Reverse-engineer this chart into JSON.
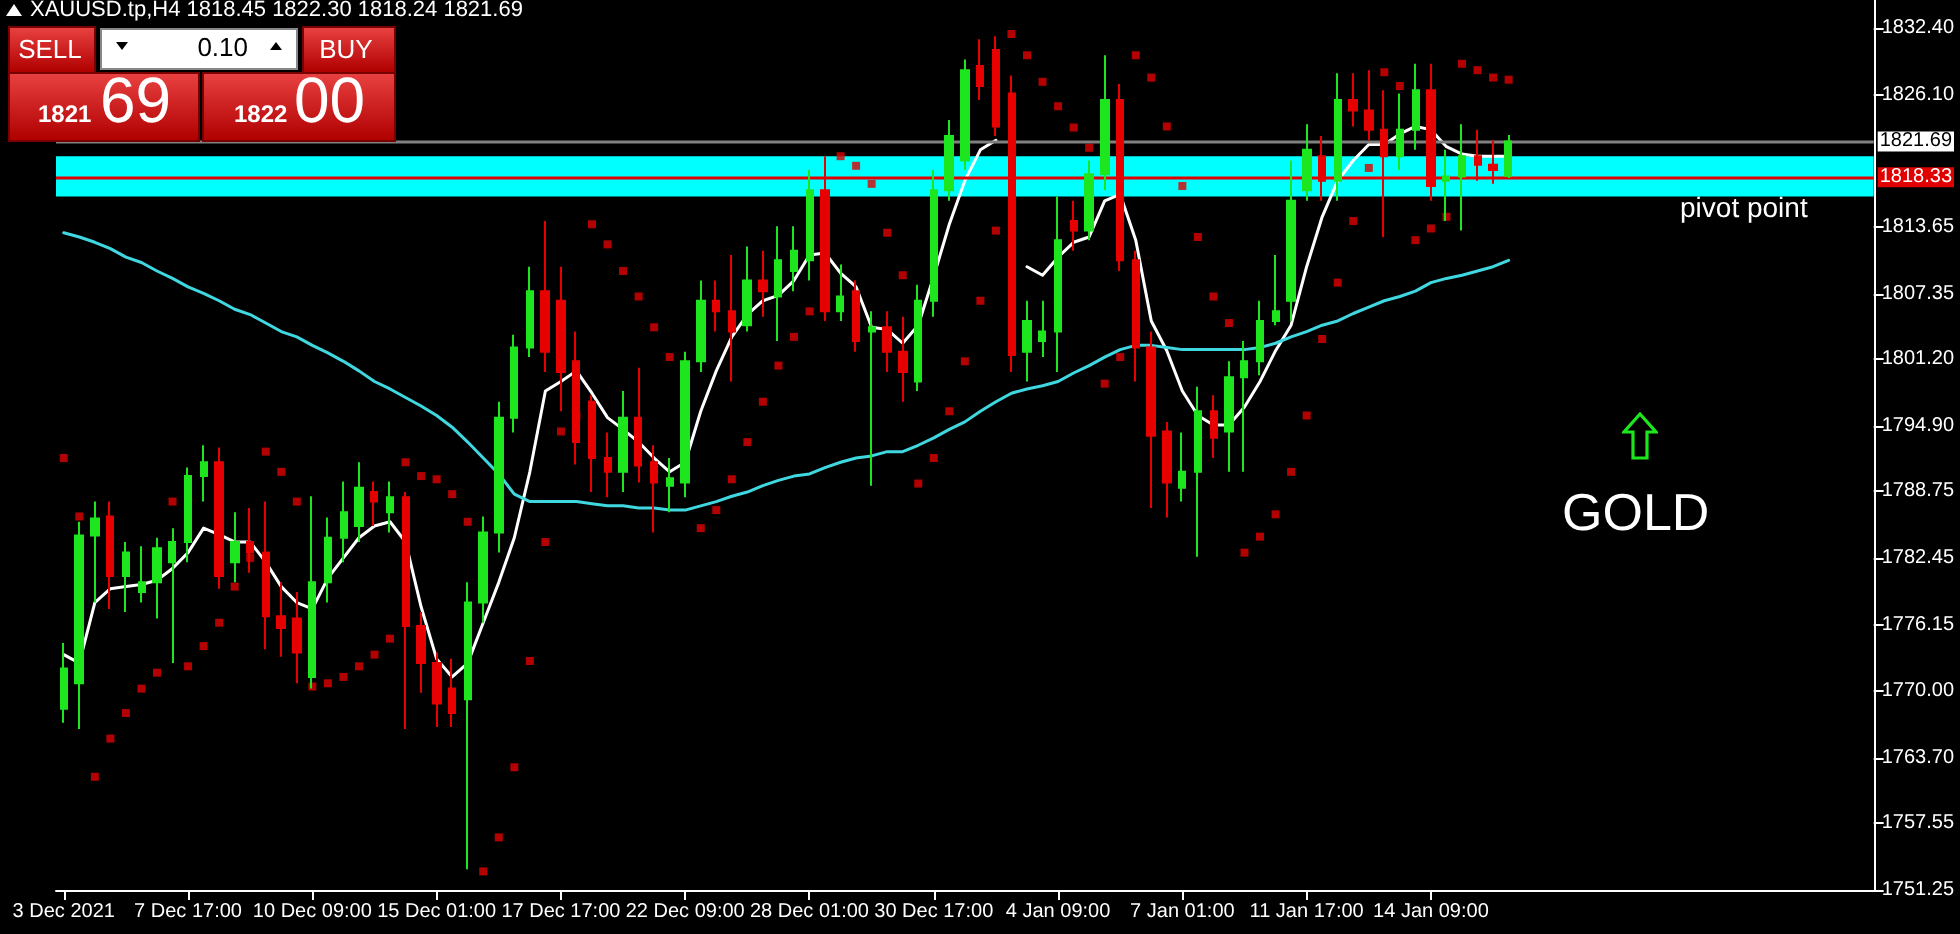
{
  "chart_data": {
    "type": "candlestick",
    "title": "XAUUSD.tp,H4  1818.45 1822.30 1818.24 1821.69",
    "categories": [
      "3 Dec 2021",
      null,
      null,
      null,
      null,
      null,
      null,
      null,
      "7 Dec 17:00",
      null,
      null,
      null,
      null,
      null,
      null,
      null,
      "10 Dec 09:00",
      null,
      null,
      null,
      null,
      null,
      null,
      null,
      "15 Dec 01:00",
      null,
      null,
      null,
      null,
      null,
      null,
      null,
      "17 Dec 17:00",
      null,
      null,
      null,
      null,
      null,
      null,
      null,
      "22 Dec 09:00",
      null,
      null,
      null,
      null,
      null,
      null,
      null,
      "28 Dec 01:00",
      null,
      null,
      null,
      null,
      null,
      null,
      null,
      "30 Dec 17:00",
      null,
      null,
      null,
      null,
      null,
      null,
      null,
      "4 Jan 09:00",
      null,
      null,
      null,
      null,
      null,
      null,
      null,
      "7 Jan 01:00",
      null,
      null,
      null,
      null,
      null,
      null,
      null,
      "11 Jan 17:00",
      null,
      null,
      null,
      null,
      null,
      null,
      null,
      "14 Jan 09:00",
      null,
      null,
      null,
      null,
      null,
      null,
      null,
      null,
      null,
      null,
      null,
      null,
      null,
      null,
      null,
      null,
      null,
      null,
      null,
      null,
      null,
      null,
      null,
      null,
      null,
      null,
      null,
      null
    ],
    "ylim": [
      1751.25,
      1835
    ],
    "yticks": [
      1751.25,
      1757.55,
      {
        "value": 1763.7,
        "label": "1763.70"
      },
      {
        "value": 1770,
        "label": "1770.00"
      },
      1776.15,
      1782.45,
      1788.75,
      {
        "value": 1794.9,
        "label": "1794.90"
      },
      {
        "value": 1801.2,
        "label": "1801.20"
      },
      1807.35,
      1813.65,
      {
        "value": 1826.1,
        "label": "1826.10"
      },
      {
        "value": 1832.4,
        "label": "1832.40"
      }
    ],
    "ref_lines": [
      {
        "axis": "y",
        "value": 1821.69,
        "label": "1821.69",
        "color": "#808080"
      },
      {
        "axis": "y",
        "value": 1818.33,
        "label": "1818.33",
        "color": "#e00000"
      }
    ],
    "bands": [
      {
        "axis": "y",
        "from": 1816.5,
        "to": 1820.3,
        "label": "pivot point",
        "color": "#00ffff"
      }
    ],
    "annotations": [
      "SELL",
      "0.10",
      "BUY",
      "1821",
      "69",
      "1822",
      "00",
      "GOLD"
    ],
    "series": [
      {
        "ohlc": [
          [
            1768.3,
            1774.5,
            1767.0,
            1772.1
          ],
          [
            1770.7,
            1785.9,
            1766.4,
            1784.6
          ],
          [
            1784.6,
            1787.8,
            1778.3,
            1786.2
          ],
          [
            1786.4,
            1787.8,
            1777.7,
            1780.8
          ],
          [
            1780.8,
            1784.0,
            1777.4,
            1783.0
          ],
          [
            1779.3,
            1783.6,
            1778.3,
            1780.2
          ],
          [
            1780.2,
            1784.4,
            1776.8,
            1783.4
          ],
          [
            1782.1,
            1785.3,
            1772.6,
            1784.0
          ],
          [
            1784.0,
            1791.0,
            1782.1,
            1790.2
          ],
          [
            1790.2,
            1793.1,
            1787.8,
            1791.5
          ],
          [
            1791.5,
            1792.9,
            1779.6,
            1780.8
          ],
          [
            1782.1,
            1786.8,
            1780.2,
            1784.0
          ],
          [
            1784.0,
            1787.2,
            1781.1,
            1783.0
          ],
          [
            1783.0,
            1787.8,
            1773.9,
            1777.0
          ],
          [
            1777.0,
            1780.2,
            1773.2,
            1775.9
          ],
          [
            1776.8,
            1779.3,
            1770.7,
            1773.6
          ],
          [
            1771.3,
            1788.3,
            1770.2,
            1780.2
          ],
          [
            1780.2,
            1786.3,
            1778.3,
            1784.4
          ],
          [
            1784.4,
            1789.7,
            1782.1,
            1786.8
          ],
          [
            1785.5,
            1791.5,
            1784.0,
            1789.1
          ],
          [
            1788.7,
            1789.7,
            1785.5,
            1787.8
          ],
          [
            1786.8,
            1789.7,
            1784.9,
            1788.2
          ],
          [
            1788.2,
            1788.7,
            1766.4,
            1776.1
          ],
          [
            1776.1,
            1777.4,
            1769.8,
            1772.6
          ],
          [
            1772.6,
            1773.6,
            1766.6,
            1768.8
          ],
          [
            1770.2,
            1773.0,
            1766.6,
            1767.9
          ],
          [
            1769.2,
            1780.2,
            1753.2,
            1778.3
          ],
          [
            1778.3,
            1786.4,
            1776.4,
            1784.9
          ],
          [
            1784.9,
            1797.2,
            1783.0,
            1795.7
          ],
          [
            1795.7,
            1803.5,
            1794.3,
            1802.3
          ],
          [
            1802.3,
            1809.9,
            1801.4,
            1807.6
          ],
          [
            1807.6,
            1814.2,
            1800.0,
            1801.9
          ],
          [
            1806.7,
            1809.9,
            1796.3,
            1800.0
          ],
          [
            1801.0,
            1803.8,
            1791.3,
            1793.4
          ],
          [
            1797.2,
            1797.8,
            1788.7,
            1791.9
          ],
          [
            1791.9,
            1794.3,
            1788.2,
            1790.6
          ],
          [
            1790.6,
            1798.2,
            1788.7,
            1795.7
          ],
          [
            1795.7,
            1800.4,
            1789.6,
            1791.2
          ],
          [
            1791.5,
            1793.1,
            1784.9,
            1789.6
          ],
          [
            1789.3,
            1791.9,
            1786.8,
            1790.0
          ],
          [
            1789.6,
            1801.9,
            1788.2,
            1801.0
          ],
          [
            1801.0,
            1808.6,
            1800.0,
            1806.7
          ],
          [
            1806.7,
            1808.6,
            1803.8,
            1805.7
          ],
          [
            1805.7,
            1811.0,
            1799.1,
            1803.8
          ],
          [
            1804.4,
            1811.8,
            1803.8,
            1808.6
          ],
          [
            1808.6,
            1811.4,
            1805.2,
            1807.6
          ],
          [
            1807.1,
            1813.7,
            1802.9,
            1810.5
          ],
          [
            1809.5,
            1813.7,
            1807.6,
            1811.4
          ],
          [
            1810.5,
            1819.0,
            1808.6,
            1817.1
          ],
          [
            1817.1,
            1820.3,
            1804.8,
            1805.7
          ],
          [
            1805.7,
            1810.1,
            1804.8,
            1807.1
          ],
          [
            1807.6,
            1808.6,
            1801.9,
            1802.9
          ],
          [
            1803.8,
            1805.7,
            1789.3,
            1804.2
          ],
          [
            1804.2,
            1805.7,
            1800.0,
            1801.9
          ],
          [
            1801.9,
            1805.2,
            1797.2,
            1800.0
          ],
          [
            1799.1,
            1808.2,
            1798.2,
            1806.7
          ],
          [
            1806.7,
            1819.0,
            1805.2,
            1817.1
          ],
          [
            1817.1,
            1823.7,
            1816.1,
            1822.2
          ],
          [
            1819.9,
            1829.4,
            1819.0,
            1828.4
          ],
          [
            1828.8,
            1831.3,
            1825.6,
            1826.9
          ],
          [
            1830.3,
            1831.6,
            1822.2,
            1823.1
          ],
          [
            1826.2,
            1827.9,
            1800.0,
            1801.6
          ],
          [
            1801.9,
            1806.7,
            1799.1,
            1804.8
          ],
          [
            1802.9,
            1806.7,
            1801.4,
            1803.8
          ],
          [
            1803.8,
            1816.5,
            1800.0,
            1812.4
          ],
          [
            1814.2,
            1816.1,
            1811.4,
            1813.3
          ],
          [
            1813.3,
            1819.9,
            1812.4,
            1818.6
          ],
          [
            1818.6,
            1829.8,
            1817.1,
            1825.6
          ],
          [
            1825.6,
            1827.1,
            1809.5,
            1810.5
          ],
          [
            1810.5,
            1811.4,
            1799.1,
            1802.3
          ],
          [
            1802.3,
            1803.8,
            1787.2,
            1794.0
          ],
          [
            1794.4,
            1795.3,
            1786.3,
            1789.6
          ],
          [
            1789.1,
            1794.3,
            1787.8,
            1790.6
          ],
          [
            1790.6,
            1798.6,
            1782.6,
            1796.3
          ],
          [
            1796.3,
            1797.8,
            1791.9,
            1793.8
          ],
          [
            1794.4,
            1801.0,
            1790.6,
            1799.5
          ],
          [
            1799.5,
            1802.9,
            1790.6,
            1801.0
          ],
          [
            1801.0,
            1806.7,
            1799.7,
            1804.8
          ],
          [
            1804.8,
            1811.0,
            1804.4,
            1805.7
          ],
          [
            1806.7,
            1819.9,
            1804.8,
            1816.1
          ],
          [
            1817.1,
            1823.3,
            1816.1,
            1820.9
          ],
          [
            1820.3,
            1822.2,
            1816.1,
            1818.0
          ],
          [
            1818.0,
            1828.1,
            1816.1,
            1825.6
          ],
          [
            1825.6,
            1828.1,
            1823.1,
            1824.6
          ],
          [
            1824.6,
            1828.4,
            1821.8,
            1822.8
          ],
          [
            1822.8,
            1826.5,
            1812.7,
            1820.3
          ],
          [
            1820.3,
            1826.2,
            1819.0,
            1822.8
          ],
          [
            1822.8,
            1829.0,
            1820.9,
            1826.5
          ],
          [
            1826.5,
            1829.0,
            1816.1,
            1817.5
          ],
          [
            1818.0,
            1820.9,
            1814.2,
            1818.4
          ],
          [
            1818.4,
            1823.3,
            1813.3,
            1820.3
          ],
          [
            1820.3,
            1822.8,
            1818.0,
            1819.5
          ],
          [
            1819.5,
            1821.8,
            1817.7,
            1819.0
          ],
          [
            1818.45,
            1822.3,
            1818.24,
            1821.69
          ],
          null,
          null,
          null,
          null,
          null,
          null,
          null,
          null,
          null,
          null,
          null,
          null,
          null,
          null,
          null,
          null,
          null,
          null,
          null,
          null,
          null,
          null,
          null
        ],
        "colors": [
          "#1ee61e",
          "#1ee61e",
          "#1ee61e",
          "#e60000",
          "#1ee61e",
          "#1ee61e",
          "#1ee61e",
          "#1ee61e",
          "#1ee61e",
          "#1ee61e",
          "#e60000",
          "#1ee61e",
          "#e60000",
          "#e60000",
          "#e60000",
          "#e60000",
          "#1ee61e",
          "#1ee61e",
          "#1ee61e",
          "#1ee61e",
          "#e60000",
          "#1ee61e",
          "#e60000",
          "#e60000",
          "#e60000",
          "#e60000",
          "#1ee61e",
          "#1ee61e",
          "#1ee61e",
          "#1ee61e",
          "#1ee61e",
          "#e60000",
          "#e60000",
          "#e60000",
          "#e60000",
          "#e60000",
          "#1ee61e",
          "#e60000",
          "#e60000",
          "#1ee61e",
          "#1ee61e",
          "#1ee61e",
          "#e60000",
          "#e60000",
          "#1ee61e",
          "#e60000",
          "#1ee61e",
          "#1ee61e",
          "#1ee61e",
          "#e60000",
          "#1ee61e",
          "#e60000",
          "#1ee61e",
          "#e60000",
          "#e60000",
          "#1ee61e",
          "#1ee61e",
          "#1ee61e",
          "#1ee61e",
          "#e60000",
          "#e60000",
          "#e60000",
          "#1ee61e",
          "#1ee61e",
          "#1ee61e",
          "#e60000",
          "#1ee61e",
          "#1ee61e",
          "#e60000",
          "#e60000",
          "#e60000",
          "#e60000",
          "#1ee61e",
          "#1ee61e",
          "#e60000",
          "#1ee61e",
          "#1ee61e",
          "#1ee61e",
          "#1ee61e",
          "#1ee61e",
          "#1ee61e",
          "#e60000",
          "#1ee61e",
          "#e60000",
          "#e60000",
          "#e60000",
          "#1ee61e",
          "#1ee61e",
          "#e60000",
          "#1ee61e",
          "#1ee61e",
          "#e60000",
          "#e60000",
          "#1ee61e",
          null,
          null,
          null,
          null,
          null,
          null,
          null,
          null,
          null,
          null,
          null,
          null,
          null,
          null,
          null,
          null,
          null,
          null,
          null,
          null,
          null,
          null,
          null
        ]
      },
      {
        "type": "line",
        "color": "#ffffff",
        "values": [
          1773.4,
          1772.6,
          1778.3,
          1779.6,
          1779.8,
          1780.0,
          1780.4,
          1781.5,
          1783.0,
          1785.3,
          1784.7,
          1784.0,
          1784.0,
          1782.1,
          1779.8,
          1778.3,
          1777.7,
          1780.6,
          1782.5,
          1784.4,
          1785.5,
          1785.9,
          1784.0,
          1777.9,
          1773.0,
          1771.3,
          1772.6,
          1776.4,
          1780.2,
          1784.4,
          1790.6,
          1798.2,
          1799.1,
          1800.1,
          1798.0,
          1795.7,
          1794.6,
          1793.4,
          1791.9,
          1790.6,
          1791.5,
          1796.3,
          1800.1,
          1803.3,
          1805.4,
          1806.7,
          1807.2,
          1808.6,
          1811.0,
          1811.2,
          1809.3,
          1808.0,
          1804.2,
          1804.0,
          1802.7,
          1804.4,
          1809.0,
          1813.9,
          1818.0,
          1820.9,
          1821.8,
          null,
          1809.9,
          1809.1,
          1810.8,
          1812.2,
          1812.7,
          1816.1,
          1816.7,
          1812.4,
          1804.8,
          1802.0,
          1798.2,
          1795.9,
          1795.0,
          1795.0,
          1796.7,
          1799.1,
          1802.0,
          1804.4,
          1809.9,
          1814.6,
          1818.0,
          1819.9,
          1821.4,
          1821.4,
          1822.4,
          1823.1,
          1822.8,
          1821.2,
          1820.5,
          1820.3,
          1820.3,
          1820.3,
          null,
          null,
          null,
          null,
          null,
          null,
          null,
          null,
          null,
          null,
          null,
          null,
          null,
          null,
          null,
          null,
          null,
          null,
          null,
          null,
          null,
          null,
          null
        ]
      },
      {
        "type": "line",
        "color": "#40d8e0",
        "values": [
          1813.1,
          1812.7,
          1812.2,
          1811.6,
          1810.8,
          1810.3,
          1809.5,
          1808.8,
          1808.0,
          1807.4,
          1806.7,
          1805.9,
          1805.4,
          1804.6,
          1803.8,
          1803.3,
          1802.5,
          1801.8,
          1801.0,
          1800.1,
          1799.1,
          1798.4,
          1797.6,
          1796.8,
          1795.9,
          1794.8,
          1793.4,
          1791.9,
          1790.4,
          1788.5,
          1787.8,
          1787.8,
          1787.8,
          1787.8,
          1787.6,
          1787.4,
          1787.4,
          1787.2,
          1787.2,
          1787.0,
          1787.0,
          1787.4,
          1787.8,
          1788.3,
          1788.7,
          1789.3,
          1789.8,
          1790.2,
          1790.4,
          1791.0,
          1791.5,
          1791.9,
          1792.1,
          1792.5,
          1792.5,
          1793.1,
          1793.8,
          1794.6,
          1795.3,
          1796.3,
          1797.2,
          1798.0,
          1798.4,
          1798.7,
          1799.1,
          1799.9,
          1800.6,
          1801.4,
          1802.1,
          1802.5,
          1802.5,
          1802.3,
          1802.1,
          1802.1,
          1802.1,
          1802.1,
          1802.1,
          1802.3,
          1802.7,
          1803.3,
          1803.8,
          1804.4,
          1804.8,
          1805.5,
          1806.1,
          1806.7,
          1807.1,
          1807.6,
          1808.4,
          1808.8,
          1809.1,
          1809.5,
          1809.9,
          1810.5,
          null,
          null,
          null,
          null,
          null,
          null,
          null,
          null,
          null,
          null,
          null,
          null,
          null,
          null,
          null,
          null,
          null,
          null,
          null,
          null,
          null,
          null,
          null
        ]
      },
      {
        "type": "scatter",
        "color": "#e00000",
        "marker": "square",
        "values": [
          1791.9,
          1786.4,
          1761.9,
          1765.5,
          1767.9,
          1770.2,
          1771.7,
          1787.8,
          1772.3,
          1774.2,
          1776.4,
          1779.8,
          1782.5,
          1792.5,
          1790.6,
          1787.8,
          1770.4,
          1770.7,
          1771.3,
          1772.3,
          1773.4,
          1774.9,
          1791.5,
          1790.2,
          1789.9,
          1788.5,
          1785.9,
          1753.0,
          1756.2,
          1762.8,
          1772.8,
          1784.0,
          1794.4,
          1795.9,
          1813.9,
          1812.0,
          1809.5,
          1807.1,
          1804.2,
          1801.4,
          null,
          1785.3,
          1787.0,
          1789.9,
          1793.4,
          1797.2,
          1800.6,
          1803.3,
          1805.7,
          null,
          1820.3,
          1819.4,
          1817.7,
          1813.1,
          1809.1,
          1789.5,
          1791.9,
          1796.3,
          1801.0,
          1806.7,
          1813.3,
          1831.8,
          1829.8,
          1827.3,
          1825.0,
          1823.0,
          1821.1,
          1798.9,
          1801.4,
          1829.8,
          1827.7,
          1823.1,
          1817.5,
          1812.7,
          1807.1,
          1804.6,
          1783.0,
          1784.5,
          1786.6,
          1790.6,
          1795.9,
          1803.1,
          1808.4,
          1814.2,
          1819.2,
          1828.2,
          1826.9,
          1812.4,
          1813.5,
          1814.6,
          1829.0,
          1828.4,
          1827.7,
          1827.5,
          null,
          null,
          null,
          null,
          null,
          null,
          null,
          null,
          null,
          null,
          null,
          null,
          null,
          null,
          null,
          null,
          null,
          null,
          null,
          null,
          null,
          null,
          null
        ]
      }
    ]
  }
}
